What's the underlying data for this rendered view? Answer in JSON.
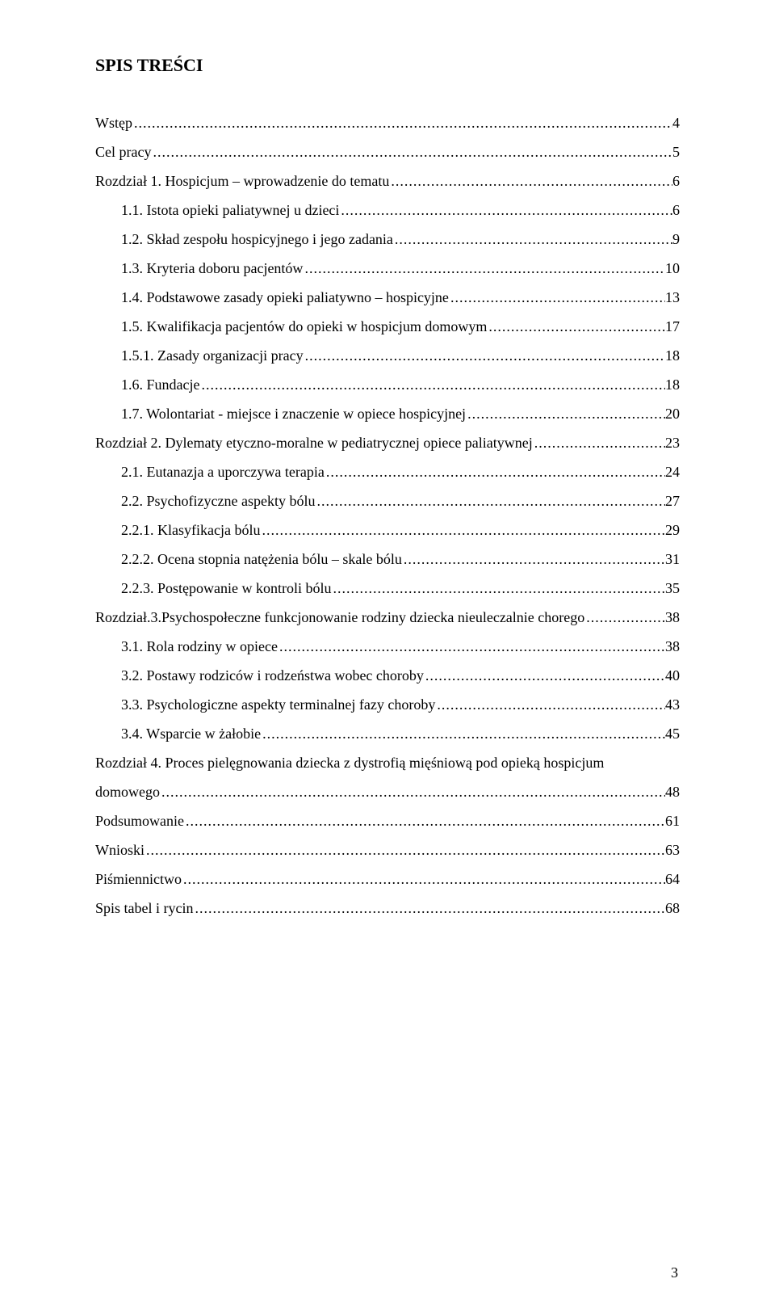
{
  "doc": {
    "title": "SPIS TREŚCI",
    "page_number": "3",
    "text_color": "#000000",
    "background_color": "#ffffff",
    "font_family": "Times New Roman",
    "title_fontsize": 22,
    "body_fontsize": 18,
    "leader_char": "."
  },
  "entries": [
    {
      "label": "Wstęp",
      "page": "4",
      "indent": 0
    },
    {
      "label": "Cel pracy",
      "page": "5",
      "indent": 0
    },
    {
      "label": "Rozdział 1. Hospicjum – wprowadzenie do tematu",
      "page": "6",
      "indent": 0
    },
    {
      "label": "1.1. Istota opieki paliatywnej u dzieci",
      "page": "6",
      "indent": 1
    },
    {
      "label": "1.2. Skład zespołu hospicyjnego i jego zadania",
      "page": "9",
      "indent": 1
    },
    {
      "label": "1.3. Kryteria doboru pacjentów",
      "page": "10",
      "indent": 1
    },
    {
      "label": "1.4. Podstawowe zasady opieki paliatywno – hospicyjne",
      "page": "13",
      "indent": 1
    },
    {
      "label": "1.5. Kwalifikacja pacjentów do opieki w hospicjum domowym",
      "page": "17",
      "indent": 1
    },
    {
      "label": "1.5.1. Zasady organizacji pracy",
      "page": "18",
      "indent": 1
    },
    {
      "label": "1.6. Fundacje",
      "page": "18",
      "indent": 1
    },
    {
      "label": "1.7. Wolontariat - miejsce i znaczenie w opiece hospicyjnej",
      "page": "20",
      "indent": 1
    },
    {
      "label": "Rozdział 2. Dylematy etyczno-moralne w pediatrycznej opiece paliatywnej",
      "page": "23",
      "indent": 0
    },
    {
      "label": "2.1. Eutanazja a uporczywa terapia",
      "page": "24",
      "indent": 1
    },
    {
      "label": "2.2. Psychofizyczne aspekty bólu",
      "page": "27",
      "indent": 1
    },
    {
      "label": "2.2.1. Klasyfikacja bólu",
      "page": "29",
      "indent": 1
    },
    {
      "label": "2.2.2. Ocena stopnia natężenia bólu – skale bólu",
      "page": "31",
      "indent": 1
    },
    {
      "label": "2.2.3. Postępowanie w kontroli bólu",
      "page": "35",
      "indent": 1
    },
    {
      "label": "Rozdział.3.Psychospołeczne funkcjonowanie rodziny dziecka nieuleczalnie chorego",
      "page": "38",
      "indent": 0
    },
    {
      "label": "3.1. Rola rodziny w opiece",
      "page": "38",
      "indent": 1
    },
    {
      "label": "3.2. Postawy rodziców i rodzeństwa wobec choroby",
      "page": "40",
      "indent": 1
    },
    {
      "label": "3.3. Psychologiczne aspekty terminalnej fazy choroby",
      "page": "43",
      "indent": 1
    },
    {
      "label": "3.4. Wsparcie w żałobie",
      "page": "45",
      "indent": 1
    },
    {
      "label": "Rozdział 4. Proces pielęgnowania dziecka z dystrofią mięśniową pod opieką hospicjum",
      "page": "",
      "indent": 0,
      "no_leader": true
    },
    {
      "label": "domowego",
      "page": "48",
      "indent": 0
    },
    {
      "label": "Podsumowanie",
      "page": "61",
      "indent": 0
    },
    {
      "label": "Wnioski",
      "page": "63",
      "indent": 0
    },
    {
      "label": "Piśmiennictwo",
      "page": "64",
      "indent": 0
    },
    {
      "label": "Spis tabel i rycin",
      "page": "68",
      "indent": 0
    }
  ]
}
